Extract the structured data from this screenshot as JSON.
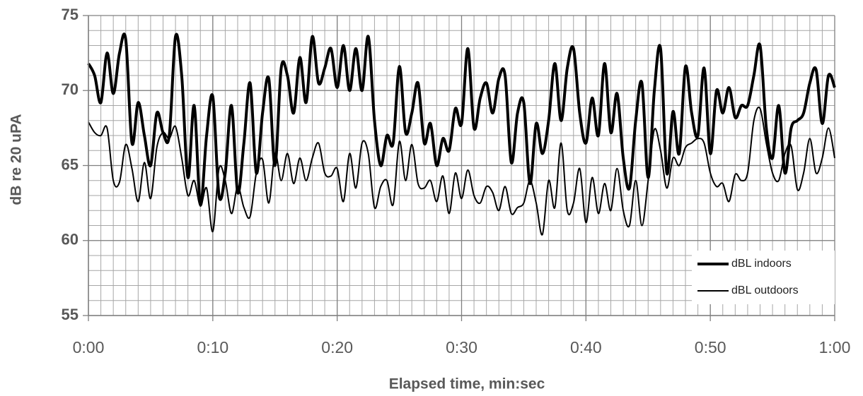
{
  "chart_data": {
    "type": "line",
    "x_label": "Elapsed time, min:sec",
    "y_label": "dB re 20 uPA",
    "x": [
      0,
      0.5,
      1,
      1.5,
      2,
      2.5,
      3,
      3.5,
      4,
      4.5,
      5,
      5.5,
      6,
      6.5,
      7,
      7.5,
      8,
      8.5,
      9,
      9.5,
      10,
      10.5,
      11,
      11.5,
      12,
      12.5,
      13,
      13.5,
      14,
      14.5,
      15,
      15.5,
      16,
      16.5,
      17,
      17.5,
      18,
      18.5,
      19,
      19.5,
      20,
      20.5,
      21,
      21.5,
      22,
      22.5,
      23,
      23.5,
      24,
      24.5,
      25,
      25.5,
      26,
      26.5,
      27,
      27.5,
      28,
      28.5,
      29,
      29.5,
      30,
      30.5,
      31,
      31.5,
      32,
      32.5,
      33,
      33.5,
      34,
      34.5,
      35,
      35.5,
      36,
      36.5,
      37,
      37.5,
      38,
      38.5,
      39,
      39.5,
      40,
      40.5,
      41,
      41.5,
      42,
      42.5,
      43,
      43.5,
      44,
      44.5,
      45,
      45.5,
      46,
      46.5,
      47,
      47.5,
      48,
      48.5,
      49,
      49.5,
      50,
      50.5,
      51,
      51.5,
      52,
      52.5,
      53,
      53.5,
      54,
      54.5,
      55,
      55.5,
      56,
      56.5,
      57,
      57.5,
      58,
      58.5,
      59,
      59.5,
      60
    ],
    "series": [
      {
        "name": "dBL indoors",
        "color": "#000000",
        "line_width": 4,
        "values": [
          71.8,
          71.0,
          69.2,
          72.5,
          69.8,
          72.5,
          73.4,
          66.5,
          69.2,
          67.0,
          65.0,
          68.5,
          67.2,
          67.0,
          73.6,
          71.0,
          64.2,
          69.0,
          62.4,
          67.0,
          69.6,
          63.0,
          64.5,
          69.0,
          63.2,
          66.5,
          70.5,
          64.5,
          68.5,
          70.8,
          65.0,
          71.5,
          71.0,
          68.5,
          72.2,
          69.2,
          73.6,
          70.5,
          71.5,
          72.8,
          70.2,
          73.0,
          70.0,
          72.8,
          70.0,
          73.6,
          68.0,
          65.0,
          67.0,
          66.5,
          71.6,
          67.2,
          68.5,
          70.5,
          66.5,
          67.8,
          65.0,
          66.8,
          66.0,
          68.8,
          67.8,
          72.8,
          67.5,
          69.5,
          70.5,
          68.5,
          70.8,
          71.0,
          65.2,
          68.5,
          69.2,
          63.8,
          67.8,
          65.8,
          68.0,
          71.8,
          68.0,
          71.5,
          72.8,
          68.5,
          66.5,
          69.5,
          67.0,
          71.8,
          67.2,
          69.8,
          65.5,
          63.5,
          68.0,
          70.5,
          64.2,
          70.0,
          72.8,
          64.5,
          68.6,
          65.8,
          71.6,
          68.5,
          67.0,
          71.5,
          65.8,
          70.0,
          68.5,
          70.2,
          68.2,
          69.0,
          69.0,
          71.0,
          73.0,
          67.5,
          65.5,
          69.0,
          64.5,
          67.5,
          68.0,
          68.5,
          70.5,
          71.4,
          67.8,
          71.0,
          70.2
        ]
      },
      {
        "name": "dBL outdoors",
        "color": "#000000",
        "line_width": 2,
        "values": [
          67.9,
          67.2,
          67.0,
          67.5,
          64.0,
          63.9,
          66.4,
          64.8,
          62.6,
          65.2,
          62.8,
          66.2,
          67.2,
          66.8,
          67.6,
          65.5,
          63.0,
          64.0,
          62.3,
          63.5,
          60.6,
          64.8,
          64.0,
          61.8,
          63.6,
          62.2,
          61.6,
          64.5,
          65.4,
          62.5,
          65.8,
          64.0,
          65.8,
          63.8,
          65.5,
          64.0,
          65.5,
          66.5,
          64.5,
          64.3,
          64.8,
          62.6,
          65.8,
          63.5,
          66.5,
          65.8,
          62.2,
          63.6,
          64.0,
          62.4,
          66.6,
          64.0,
          66.4,
          63.8,
          63.5,
          64.0,
          62.6,
          64.3,
          61.8,
          64.5,
          62.8,
          64.7,
          63.0,
          62.5,
          63.6,
          63.2,
          62.0,
          63.6,
          61.8,
          62.2,
          62.5,
          64.0,
          62.5,
          60.4,
          64.0,
          62.2,
          66.5,
          62.0,
          62.5,
          64.8,
          61.2,
          64.2,
          61.8,
          63.8,
          62.0,
          64.8,
          62.0,
          61.0,
          64.0,
          61.0,
          64.0,
          67.4,
          66.0,
          63.5,
          65.5,
          65.0,
          66.2,
          66.5,
          66.8,
          66.5,
          64.5,
          63.6,
          63.8,
          62.6,
          64.4,
          64.0,
          64.5,
          68.0,
          68.8,
          66.5,
          64.5,
          64.0,
          65.8,
          66.3,
          63.4,
          64.5,
          66.8,
          64.5,
          65.5,
          67.5,
          65.5
        ]
      }
    ],
    "xlim": [
      0,
      60
    ],
    "xticks": [
      {
        "value": 0,
        "label": "0:00"
      },
      {
        "value": 10,
        "label": "0:10"
      },
      {
        "value": 20,
        "label": "0:20"
      },
      {
        "value": 30,
        "label": "0:30"
      },
      {
        "value": 40,
        "label": "0:40"
      },
      {
        "value": 50,
        "label": "0:50"
      },
      {
        "value": 60,
        "label": "1:00"
      }
    ],
    "ylim": [
      55,
      75
    ],
    "yticks": [
      55,
      60,
      65,
      70,
      75
    ],
    "grid": true,
    "x_minor_step": 1,
    "y_minor_step": 1,
    "legend": "lower right"
  }
}
